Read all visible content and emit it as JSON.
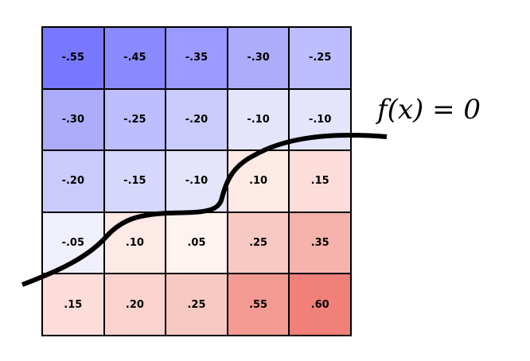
{
  "grid": {
    "values": [
      [
        "-.55",
        "-.45",
        "-.35",
        "-.30",
        "-.25"
      ],
      [
        "-.30",
        "-.25",
        "-.20",
        "-.10",
        "-.10"
      ],
      [
        "-.20",
        "-.15",
        "-.10",
        ".10",
        ".15"
      ],
      [
        "-.05",
        ".10",
        ".05",
        ".25",
        ".35"
      ],
      [
        ".15",
        ".20",
        ".25",
        ".55",
        ".60"
      ]
    ],
    "colors": [
      [
        "#7878FF",
        "#8A8AFF",
        "#9B9BFF",
        "#ACACFB",
        "#BDBDFF"
      ],
      [
        "#ACACFB",
        "#BDBDFF",
        "#CBCBFB",
        "#E4E4FB",
        "#E4E4FB"
      ],
      [
        "#CBCBFB",
        "#D7D7FB",
        "#E4E4FB",
        "#FDE9E6",
        "#FCDDDA"
      ],
      [
        "#F0F0FD",
        "#FDE9E6",
        "#FEF3F1",
        "#F8C9C3",
        "#F5B3AC"
      ],
      [
        "#FCDDDA",
        "#FAD3CF",
        "#F8C9C3",
        "#F39A92",
        "#F08078"
      ]
    ]
  },
  "boundary_label": "f(x) = 0"
}
